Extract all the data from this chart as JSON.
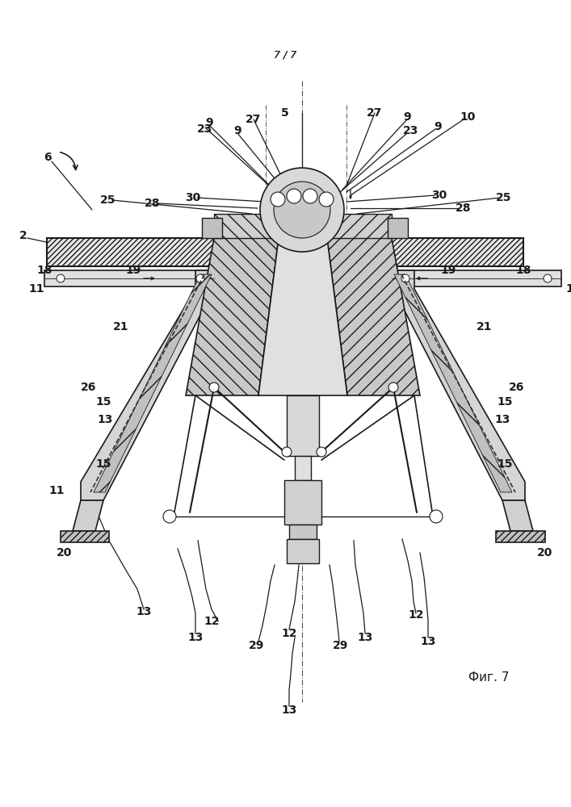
{
  "page_label": "7 / 7",
  "fig_label": "Фиг. 7",
  "bg_color": "#ffffff",
  "lc": "#1a1a1a",
  "gray1": "#cccccc",
  "gray2": "#e0e0e0",
  "gray3": "#b0b0b0",
  "fontsize": 10,
  "fig_label_fontsize": 11,
  "page_label_fontsize": 9
}
